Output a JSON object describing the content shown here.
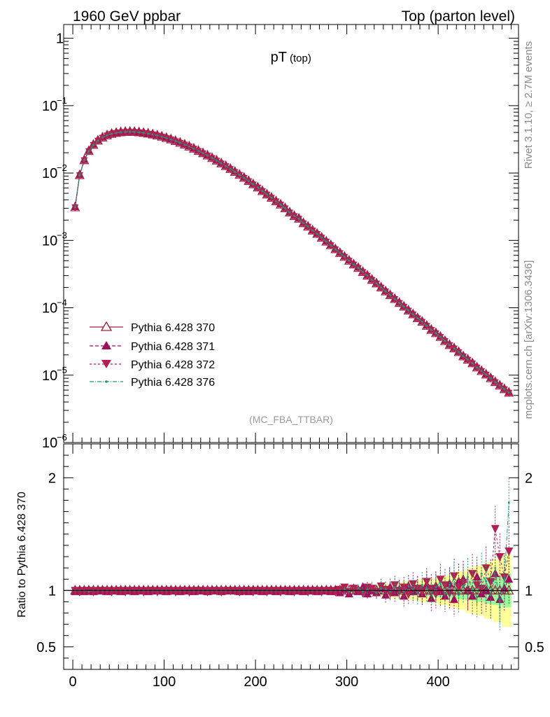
{
  "header": {
    "left": "1960 GeV ppbar",
    "right": "Top (parton level)"
  },
  "side_labels": {
    "rivet": "Rivet 3.1.10, ≥ 2.7M events",
    "mcplots": "mcplots.cern.ch [arXiv:1306.3436]"
  },
  "chart_data": [
    {
      "type": "line",
      "title": "pT",
      "title_sub": "(top)",
      "watermark": "(MC_FBA_TTBAR)",
      "yscale": "log",
      "xlim": [
        -10,
        488
      ],
      "ylim": [
        1e-06,
        1.6
      ],
      "y_ticks": [
        {
          "value": 1,
          "label": "1",
          "sup": ""
        },
        {
          "value": 0.1,
          "label": "10",
          "sup": "−1"
        },
        {
          "value": 0.01,
          "label": "10",
          "sup": "−2"
        },
        {
          "value": 0.001,
          "label": "10",
          "sup": "−3"
        },
        {
          "value": 0.0001,
          "label": "10",
          "sup": "−4"
        },
        {
          "value": 1e-05,
          "label": "10",
          "sup": "−5"
        },
        {
          "value": 1e-06,
          "label": "10",
          "sup": "−6"
        }
      ],
      "legend_position": "lower-left",
      "x": [
        2.5,
        7.5,
        12.5,
        17.5,
        22.5,
        27.5,
        32.5,
        37.5,
        42.5,
        47.5,
        52.5,
        57.5,
        62.5,
        67.5,
        72.5,
        77.5,
        82.5,
        87.5,
        92.5,
        97.5,
        102.5,
        107.5,
        112.5,
        117.5,
        122.5,
        127.5,
        132.5,
        137.5,
        142.5,
        147.5,
        152.5,
        157.5,
        162.5,
        167.5,
        172.5,
        177.5,
        182.5,
        187.5,
        192.5,
        197.5,
        202.5,
        207.5,
        212.5,
        217.5,
        222.5,
        227.5,
        232.5,
        237.5,
        242.5,
        247.5,
        252.5,
        257.5,
        262.5,
        267.5,
        272.5,
        277.5,
        282.5,
        287.5,
        292.5,
        297.5,
        302.5,
        307.5,
        312.5,
        317.5,
        322.5,
        327.5,
        332.5,
        337.5,
        342.5,
        347.5,
        352.5,
        357.5,
        362.5,
        367.5,
        372.5,
        377.5,
        382.5,
        387.5,
        392.5,
        397.5,
        402.5,
        407.5,
        412.5,
        417.5,
        422.5,
        427.5,
        432.5,
        437.5,
        442.5,
        447.5,
        452.5,
        457.5,
        462.5,
        467.5,
        472.5,
        477.5
      ],
      "series": [
        {
          "name": "Pythia 6.428 370",
          "color": "#a0203a",
          "dash": "",
          "marker": "triangle-up-open",
          "values": [
            0.0031,
            0.0093,
            0.0155,
            0.0212,
            0.0262,
            0.0303,
            0.0336,
            0.0362,
            0.0381,
            0.0394,
            0.0403,
            0.0408,
            0.0409,
            0.0407,
            0.0402,
            0.0394,
            0.0385,
            0.0374,
            0.0361,
            0.0347,
            0.0331,
            0.0315,
            0.0298,
            0.0281,
            0.0264,
            0.0247,
            0.023,
            0.0213,
            0.0197,
            0.0182,
            0.0167,
            0.0153,
            0.0139,
            0.0127,
            0.0115,
            0.0104,
            0.0094,
            0.0085,
            0.0076,
            0.0068,
            0.0061,
            0.0054,
            0.0048,
            0.0043,
            0.0038,
            0.0034,
            0.003,
            0.0026,
            0.0023,
            0.0021,
            0.0018,
            0.0016,
            0.0014,
            0.00125,
            0.0011,
            0.00096,
            0.00085,
            0.00074,
            0.00065,
            0.00057,
            0.0005,
            0.00044,
            0.00039,
            0.00034,
            0.0003,
            0.00026,
            0.00023,
            0.0002,
            0.000175,
            0.000154,
            0.000135,
            0.000118,
            0.000104,
            9.1e-05,
            8e-05,
            7e-05,
            6.2e-05,
            5.4e-05,
            4.7e-05,
            4.2e-05,
            3.7e-05,
            3.2e-05,
            2.8e-05,
            2.5e-05,
            2.2e-05,
            1.9e-05,
            1.7e-05,
            1.5e-05,
            1.3e-05,
            1.15e-05,
            1.02e-05,
            9e-06,
            7.9e-06,
            7e-06,
            6.2e-06,
            5.5e-06
          ]
        },
        {
          "name": "Pythia 6.428 371",
          "color": "#a0105a",
          "dash": "5,3",
          "marker": "triangle-up",
          "values": [
            0.0031,
            0.0093,
            0.0155,
            0.0212,
            0.0262,
            0.0303,
            0.0336,
            0.0362,
            0.0381,
            0.0394,
            0.0403,
            0.0408,
            0.0409,
            0.0407,
            0.0402,
            0.0394,
            0.0385,
            0.0374,
            0.0361,
            0.0347,
            0.0331,
            0.0315,
            0.0298,
            0.0281,
            0.0264,
            0.0247,
            0.023,
            0.0213,
            0.0197,
            0.0182,
            0.0167,
            0.0153,
            0.0139,
            0.0127,
            0.0115,
            0.0104,
            0.0094,
            0.0085,
            0.0076,
            0.0068,
            0.0061,
            0.0054,
            0.0048,
            0.0043,
            0.0038,
            0.0034,
            0.003,
            0.0026,
            0.0023,
            0.0021,
            0.0018,
            0.0016,
            0.0014,
            0.00125,
            0.0011,
            0.00096,
            0.00085,
            0.00074,
            0.00065,
            0.00057,
            0.0005,
            0.00044,
            0.00039,
            0.00034,
            0.0003,
            0.00026,
            0.00023,
            0.0002,
            0.000175,
            0.000154,
            0.000135,
            0.000118,
            0.000104,
            9.1e-05,
            8e-05,
            7e-05,
            6.2e-05,
            5.4e-05,
            4.7e-05,
            4.2e-05,
            3.7e-05,
            3.2e-05,
            2.8e-05,
            2.5e-05,
            2.2e-05,
            1.9e-05,
            1.7e-05,
            1.5e-05,
            1.3e-05,
            1.15e-05,
            1.02e-05,
            9e-06,
            7.9e-06,
            7e-06,
            6.2e-06,
            5.5e-06
          ]
        },
        {
          "name": "Pythia 6.428 372",
          "color": "#b02050",
          "dash": "3,3",
          "marker": "triangle-down",
          "values": [
            0.0031,
            0.0093,
            0.0155,
            0.0212,
            0.0262,
            0.0303,
            0.0336,
            0.0362,
            0.0381,
            0.0394,
            0.0403,
            0.0408,
            0.0409,
            0.0407,
            0.0402,
            0.0394,
            0.0385,
            0.0374,
            0.0361,
            0.0347,
            0.0331,
            0.0315,
            0.0298,
            0.0281,
            0.0264,
            0.0247,
            0.023,
            0.0213,
            0.0197,
            0.0182,
            0.0167,
            0.0153,
            0.0139,
            0.0127,
            0.0115,
            0.0104,
            0.0094,
            0.0085,
            0.0076,
            0.0068,
            0.0061,
            0.0054,
            0.0048,
            0.0043,
            0.0038,
            0.0034,
            0.003,
            0.0026,
            0.0023,
            0.0021,
            0.0018,
            0.0016,
            0.0014,
            0.00125,
            0.0011,
            0.00096,
            0.00085,
            0.00074,
            0.00065,
            0.00057,
            0.0005,
            0.00044,
            0.00039,
            0.00034,
            0.0003,
            0.00026,
            0.00023,
            0.0002,
            0.000175,
            0.000154,
            0.000135,
            0.000118,
            0.000104,
            9.1e-05,
            8e-05,
            7e-05,
            6.2e-05,
            5.4e-05,
            4.7e-05,
            4.2e-05,
            3.7e-05,
            3.2e-05,
            2.8e-05,
            2.5e-05,
            2.2e-05,
            1.9e-05,
            1.7e-05,
            1.5e-05,
            1.3e-05,
            1.15e-05,
            1.02e-05,
            9e-06,
            7.9e-06,
            7e-06,
            6.2e-06,
            5.5e-06
          ]
        },
        {
          "name": "Pythia 6.428 376",
          "color": "#1a9a80",
          "dash": "6,2,1,2",
          "marker": "dot",
          "values": [
            0.0031,
            0.0093,
            0.0155,
            0.0212,
            0.0262,
            0.0303,
            0.0336,
            0.0362,
            0.0381,
            0.0394,
            0.0403,
            0.0408,
            0.0409,
            0.0407,
            0.0402,
            0.0394,
            0.0385,
            0.0374,
            0.0361,
            0.0347,
            0.0331,
            0.0315,
            0.0298,
            0.0281,
            0.0264,
            0.0247,
            0.023,
            0.0213,
            0.0197,
            0.0182,
            0.0167,
            0.0153,
            0.0139,
            0.0127,
            0.0115,
            0.0104,
            0.0094,
            0.0085,
            0.0076,
            0.0068,
            0.0061,
            0.0054,
            0.0048,
            0.0043,
            0.0038,
            0.0034,
            0.003,
            0.0026,
            0.0023,
            0.0021,
            0.0018,
            0.0016,
            0.0014,
            0.00125,
            0.0011,
            0.00096,
            0.00085,
            0.00074,
            0.00065,
            0.00057,
            0.0005,
            0.00044,
            0.00039,
            0.00034,
            0.0003,
            0.00026,
            0.00023,
            0.0002,
            0.000175,
            0.000154,
            0.000135,
            0.000118,
            0.000104,
            9.1e-05,
            8e-05,
            7e-05,
            6.2e-05,
            5.4e-05,
            4.7e-05,
            4.2e-05,
            3.7e-05,
            3.2e-05,
            2.8e-05,
            2.5e-05,
            2.2e-05,
            1.9e-05,
            1.7e-05,
            1.5e-05,
            1.3e-05,
            1.15e-05,
            1.02e-05,
            9e-06,
            7.9e-06,
            7e-06,
            6.2e-06,
            5.5e-06
          ]
        }
      ]
    },
    {
      "type": "line",
      "ylabel": "Ratio to Pythia 6.428 370",
      "xlim": [
        -10,
        488
      ],
      "ylim": [
        0.3,
        2.3
      ],
      "x_ticks": [
        0,
        100,
        200,
        300,
        400
      ],
      "y_ticks": [
        {
          "value": 2,
          "label": "2"
        },
        {
          "value": 1,
          "label": "1"
        },
        {
          "value": 0.5,
          "label": "0.5"
        }
      ],
      "band_start_x": 290,
      "band_colors": {
        "outer": "#ffff99",
        "inner": "#99ff99"
      },
      "uncertainty_band": {
        "x": [
          290,
          300,
          310,
          320,
          330,
          340,
          350,
          360,
          370,
          380,
          390,
          400,
          410,
          420,
          430,
          440,
          450,
          460,
          470,
          480
        ],
        "outer": [
          0.02,
          0.025,
          0.03,
          0.04,
          0.05,
          0.06,
          0.07,
          0.08,
          0.09,
          0.1,
          0.11,
          0.13,
          0.15,
          0.17,
          0.2,
          0.22,
          0.25,
          0.28,
          0.32,
          0.35
        ],
        "inner": [
          0.01,
          0.012,
          0.015,
          0.02,
          0.025,
          0.03,
          0.035,
          0.04,
          0.045,
          0.05,
          0.055,
          0.06,
          0.07,
          0.08,
          0.09,
          0.1,
          0.12,
          0.13,
          0.15,
          0.17
        ]
      },
      "series": [
        {
          "name": "Pythia 6.428 370",
          "values_const": 1.0
        },
        {
          "name": "Pythia 6.428 371",
          "values": [
            0.99,
            1.0,
            0.99,
            1.0,
            0.99,
            1.0,
            1.0,
            0.99,
            1.0,
            1.0,
            0.99,
            1.0,
            1.0,
            0.99,
            1.0,
            1.0,
            0.99,
            1.0,
            1.0,
            1.0,
            0.99,
            1.0,
            1.0,
            0.99,
            1.0,
            1.0,
            0.99,
            1.0,
            1.0,
            0.99,
            1.0,
            1.0,
            0.99,
            1.0,
            1.0,
            1.0,
            0.99,
            1.0,
            0.99,
            1.0,
            1.0,
            0.99,
            1.0,
            1.0,
            0.99,
            1.0,
            1.0,
            0.99,
            1.0,
            1.0,
            0.99,
            1.0,
            1.0,
            0.99,
            1.0,
            1.0,
            0.99,
            1.0,
            0.98,
            1.01,
            0.97,
            1.02,
            0.99,
            1.03,
            0.97,
            1.0,
            0.98,
            1.02,
            0.96,
            1.03,
            0.98,
            1.01,
            0.95,
            1.04,
            0.99,
            1.02,
            0.97,
            1.05,
            0.93,
            1.04,
            0.99,
            0.95,
            1.06,
            0.92,
            1.08,
            1.1,
            1.0,
            0.95,
            1.12,
            0.97,
            1.0,
            0.94,
            1.15,
            0.92,
            1.02,
            1.1
          ]
        },
        {
          "name": "Pythia 6.428 372",
          "values": [
            1.0,
            0.99,
            1.0,
            1.0,
            0.99,
            1.0,
            1.0,
            1.0,
            0.99,
            1.0,
            1.0,
            0.99,
            1.0,
            1.0,
            1.0,
            0.99,
            1.0,
            1.0,
            0.99,
            1.0,
            1.0,
            1.0,
            0.99,
            1.0,
            1.0,
            0.99,
            1.0,
            1.0,
            1.0,
            0.99,
            1.0,
            1.0,
            0.99,
            1.0,
            1.0,
            1.0,
            0.99,
            1.0,
            1.0,
            0.99,
            1.0,
            1.0,
            0.99,
            1.0,
            1.0,
            0.99,
            1.0,
            1.0,
            0.99,
            1.0,
            1.0,
            0.99,
            1.0,
            1.0,
            0.99,
            1.0,
            1.0,
            0.99,
            1.01,
            1.03,
            0.99,
            1.02,
            1.0,
            0.98,
            1.03,
            1.02,
            0.99,
            1.04,
            1.01,
            0.98,
            1.05,
            1.0,
            1.03,
            0.97,
            1.06,
            1.02,
            0.99,
            1.08,
            1.02,
            0.97,
            1.1,
            1.05,
            0.98,
            1.13,
            1.03,
            1.07,
            0.99,
            1.15,
            1.05,
            1.02,
            1.2,
            1.08,
            1.55,
            1.3,
            1.12,
            1.35
          ]
        },
        {
          "name": "Pythia 6.428 376",
          "values": [
            1.0,
            1.0,
            1.0,
            0.99,
            1.0,
            1.0,
            1.0,
            1.0,
            1.0,
            1.0,
            1.0,
            1.0,
            1.0,
            1.0,
            1.0,
            1.0,
            1.0,
            1.0,
            1.0,
            1.0,
            1.0,
            1.0,
            1.0,
            1.0,
            1.0,
            1.0,
            1.0,
            1.0,
            1.0,
            1.0,
            1.0,
            1.0,
            1.0,
            1.0,
            1.0,
            1.0,
            1.0,
            1.0,
            1.0,
            1.0,
            1.0,
            1.0,
            1.0,
            1.0,
            1.0,
            1.0,
            1.0,
            1.0,
            1.0,
            1.0,
            1.0,
            1.0,
            1.0,
            1.0,
            1.0,
            1.0,
            1.0,
            1.0,
            1.0,
            1.01,
            0.99,
            1.0,
            1.02,
            0.99,
            1.01,
            1.0,
            0.98,
            1.02,
            1.01,
            0.99,
            1.03,
            1.0,
            0.99,
            1.04,
            1.01,
            0.98,
            1.05,
            1.02,
            0.98,
            1.03,
            1.07,
            0.97,
            1.05,
            1.1,
            0.96,
            1.04,
            1.12,
            1.0,
            0.94,
            1.15,
            1.08,
            0.96,
            1.2,
            0.85,
            1.1,
            1.78
          ]
        }
      ]
    }
  ]
}
